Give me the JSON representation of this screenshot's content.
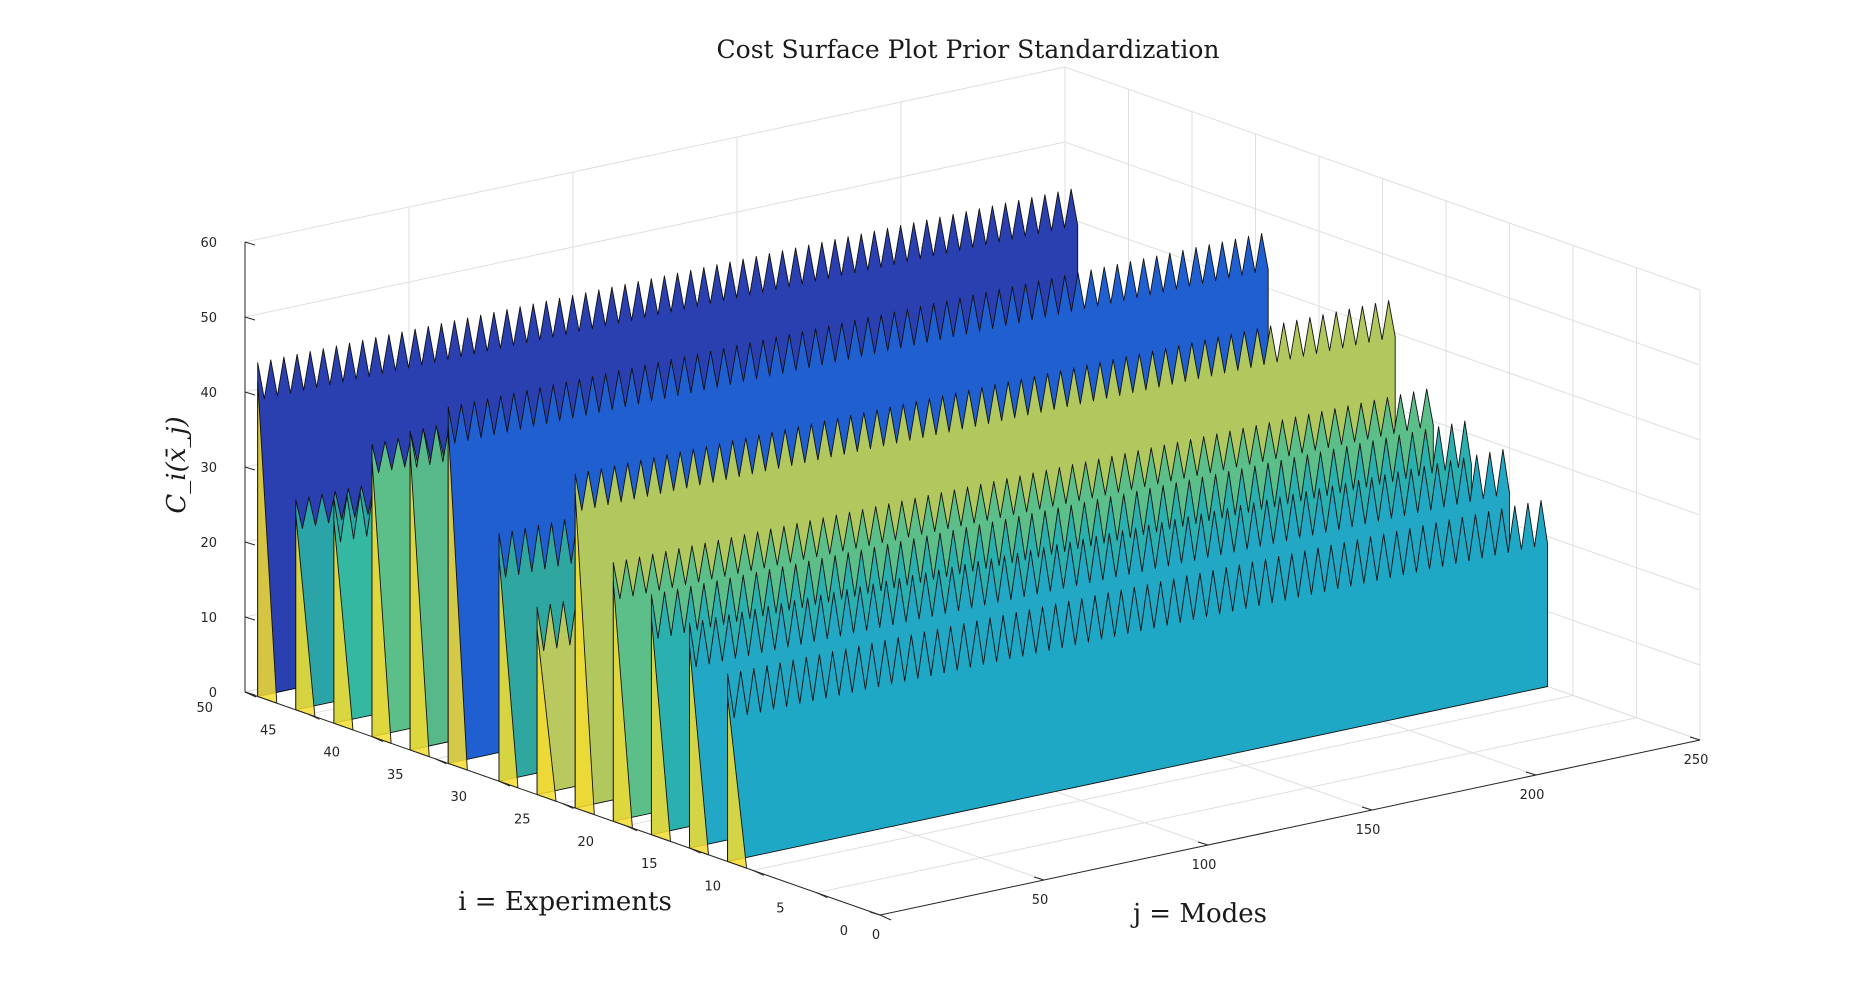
{
  "chart_data": {
    "type": "surface",
    "title": "Cost Surface Plot Prior Standardization",
    "xlabel": "j = Modes",
    "ylabel": "i = Experiments",
    "zlabel": "C_i(x̄_j)",
    "xlim": [
      0,
      250
    ],
    "ylim": [
      0,
      50
    ],
    "zlim": [
      0,
      60
    ],
    "x_ticks": [
      "0",
      "50",
      "100",
      "150",
      "200",
      "250"
    ],
    "y_ticks": [
      "0",
      "5",
      "10",
      "15",
      "20",
      "25",
      "30",
      "35",
      "40",
      "45",
      "50"
    ],
    "z_ticks": [
      "0",
      "10",
      "20",
      "30",
      "40",
      "50",
      "60"
    ],
    "grid": true,
    "colormap": "parula",
    "colors": {
      "dark_blue": "#2a2fa0",
      "blue": "#1e5fd0",
      "teal": "#1fa6bf",
      "green": "#5cbf8a",
      "yellow_green": "#b9cc5c",
      "yellow": "#f4dc30",
      "orange": "#e8b040"
    },
    "ridges": [
      {
        "experiment": 49,
        "level": 42,
        "amplitude": 2.5,
        "color": "#2a3fb0"
      },
      {
        "experiment": 46,
        "level": 26,
        "amplitude": 2.0,
        "color": "#2aa4a6"
      },
      {
        "experiment": 43,
        "level": 27,
        "amplitude": 3.0,
        "color": "#35b8a2"
      },
      {
        "experiment": 40,
        "level": 37,
        "amplitude": 2.0,
        "color": "#5cbf8a"
      },
      {
        "experiment": 37,
        "level": 40,
        "amplitude": 2.5,
        "color": "#57b98a"
      },
      {
        "experiment": 34,
        "level": 45,
        "amplitude": 2.5,
        "color": "#1f5fd0"
      },
      {
        "experiment": 30,
        "level": 30,
        "amplitude": 3.0,
        "color": "#2fa7a0"
      },
      {
        "experiment": 27,
        "level": 22,
        "amplitude": 3.0,
        "color": "#b9c960"
      },
      {
        "experiment": 24,
        "level": 42,
        "amplitude": 2.5,
        "color": "#b0c85e"
      },
      {
        "experiment": 21,
        "level": 32,
        "amplitude": 2.5,
        "color": "#5cbf8a"
      },
      {
        "experiment": 18,
        "level": 29,
        "amplitude": 3.0,
        "color": "#2bb0b0"
      },
      {
        "experiment": 15,
        "level": 27,
        "amplitude": 3.0,
        "color": "#22a8c4"
      },
      {
        "experiment": 12,
        "level": 22,
        "amplitude": 3.0,
        "color": "#1ea8c6"
      }
    ]
  }
}
